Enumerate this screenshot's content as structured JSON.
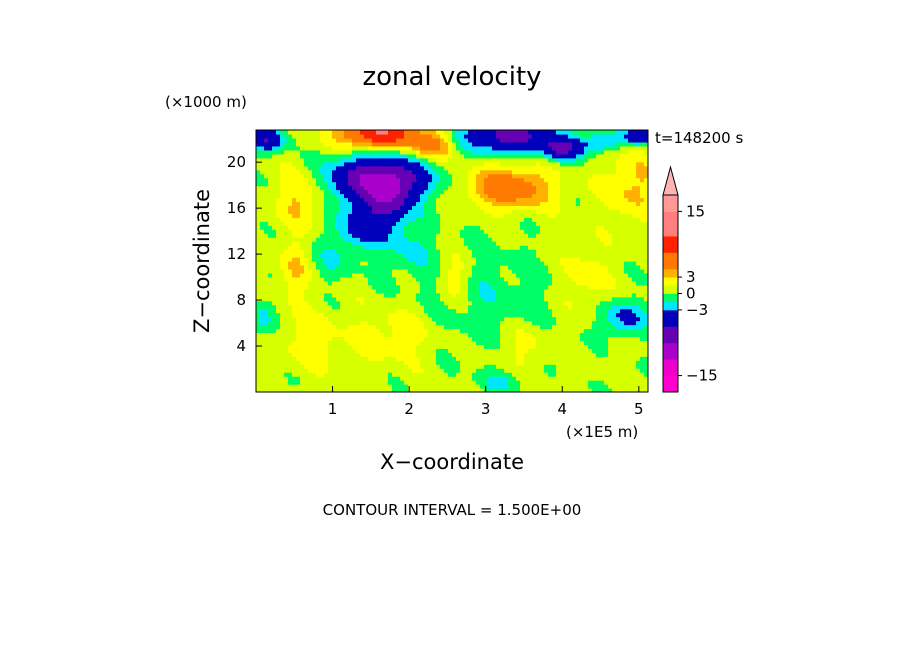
{
  "chart_data": {
    "type": "heatmap",
    "title": "zonal velocity",
    "xlabel": "X−coordinate",
    "ylabel": "Z−coordinate",
    "x_unit_label": "(×1E5 m)",
    "y_unit_label": "(×1000 m)",
    "time_label": "t=148200 s",
    "footer": "CONTOUR INTERVAL = 1.500E+00",
    "xlim": [
      0,
      5.12
    ],
    "ylim": [
      0,
      22.8
    ],
    "xticks": [
      1,
      2,
      3,
      4,
      5
    ],
    "xtick_labels": [
      "1",
      "2",
      "3",
      "4",
      "5"
    ],
    "yticks": [
      4,
      8,
      12,
      16,
      20
    ],
    "ytick_labels": [
      "4",
      "8",
      "12",
      "16",
      "20"
    ],
    "grid": false,
    "colorbar": {
      "position": "right",
      "extend": "max",
      "levels": [
        -18,
        -16.5,
        -15,
        -13.5,
        -12,
        -10.5,
        -9,
        -7.5,
        -6,
        -4.5,
        -3,
        -1.5,
        0,
        1.5,
        3,
        4.5,
        6,
        7.5,
        9,
        10.5,
        12,
        13.5,
        15,
        16.5,
        18
      ],
      "colors": [
        "#ff00cc",
        "#ff00cc",
        "#ee00cc",
        "#ee00cc",
        "#aa00cc",
        "#aa00cc",
        "#6600b3",
        "#6600b3",
        "#0000bb",
        "#0000bb",
        "#00e6ff",
        "#00ff66",
        "#d6ff00",
        "#ffff00",
        "#ffb000",
        "#ff7a00",
        "#ff7a00",
        "#ff2200",
        "#ff2200",
        "#ff7f7f",
        "#ff7f7f",
        "#ff7f7f",
        "#ff9999",
        "#ff9999"
      ],
      "extend_color": "#ffb3b3",
      "tick_values": [
        15,
        3,
        0,
        -3,
        -15
      ],
      "tick_labels": [
        "15",
        "3",
        "0",
        "−3",
        "−15"
      ]
    },
    "field": {
      "background": 0.5,
      "blobs": [
        {
          "x": 1.6,
          "z": 18.5,
          "sx": 0.65,
          "sz": 2.0,
          "a": -10
        },
        {
          "x": 1.4,
          "z": 14.5,
          "sx": 0.35,
          "sz": 2.0,
          "a": -5
        },
        {
          "x": 1.75,
          "z": 16.5,
          "sx": 0.25,
          "sz": 2.2,
          "a": -5
        },
        {
          "x": 3.3,
          "z": 22.3,
          "sx": 0.6,
          "sz": 1.4,
          "a": -8
        },
        {
          "x": 4.0,
          "z": 21.2,
          "sx": 0.3,
          "sz": 1.0,
          "a": -6
        },
        {
          "x": 4.5,
          "z": 21.8,
          "sx": 0.25,
          "sz": 0.8,
          "a": -4
        },
        {
          "x": 5.0,
          "z": 22.3,
          "sx": 0.2,
          "sz": 0.8,
          "a": -6
        },
        {
          "x": 0.15,
          "z": 22.0,
          "sx": 0.25,
          "sz": 1.0,
          "a": -6
        },
        {
          "x": 1.6,
          "z": 22.5,
          "sx": 0.5,
          "sz": 1.2,
          "a": 10
        },
        {
          "x": 2.3,
          "z": 21.5,
          "sx": 0.3,
          "sz": 1.2,
          "a": 5
        },
        {
          "x": 3.3,
          "z": 17.8,
          "sx": 0.55,
          "sz": 1.8,
          "a": 6
        },
        {
          "x": 4.9,
          "z": 18.0,
          "sx": 0.35,
          "sz": 3.0,
          "a": 3
        },
        {
          "x": 0.6,
          "z": 17.0,
          "sx": 0.35,
          "sz": 2.5,
          "a": 3
        },
        {
          "x": 3.0,
          "z": 8.0,
          "sx": 0.9,
          "sz": 5.0,
          "a": -1.5
        },
        {
          "x": 4.8,
          "z": 6.5,
          "sx": 0.3,
          "sz": 1.5,
          "a": -4
        },
        {
          "x": 0.1,
          "z": 6.5,
          "sx": 0.15,
          "sz": 1.8,
          "a": -2.5
        },
        {
          "x": 2.0,
          "z": 12.5,
          "sx": 0.3,
          "sz": 2.5,
          "a": -2
        },
        {
          "x": 1.0,
          "z": 11.5,
          "sx": 0.3,
          "sz": 2.0,
          "a": -1.5
        },
        {
          "x": 1.8,
          "z": 5.0,
          "sx": 0.6,
          "sz": 2.5,
          "a": 2
        },
        {
          "x": 0.7,
          "z": 4.5,
          "sx": 0.35,
          "sz": 2.5,
          "a": 2
        },
        {
          "x": 3.5,
          "z": 4.0,
          "sx": 0.4,
          "sz": 2.0,
          "a": 1.8
        },
        {
          "x": 4.3,
          "z": 10.0,
          "sx": 0.3,
          "sz": 3.0,
          "a": 2
        },
        {
          "x": 0.5,
          "z": 10.5,
          "sx": 0.2,
          "sz": 2.5,
          "a": 2.5
        },
        {
          "x": 2.6,
          "z": 10.0,
          "sx": 0.2,
          "sz": 2.0,
          "a": 2.5
        },
        {
          "x": 3.2,
          "z": 1.0,
          "sx": 0.3,
          "sz": 1.0,
          "a": -2
        }
      ]
    }
  }
}
